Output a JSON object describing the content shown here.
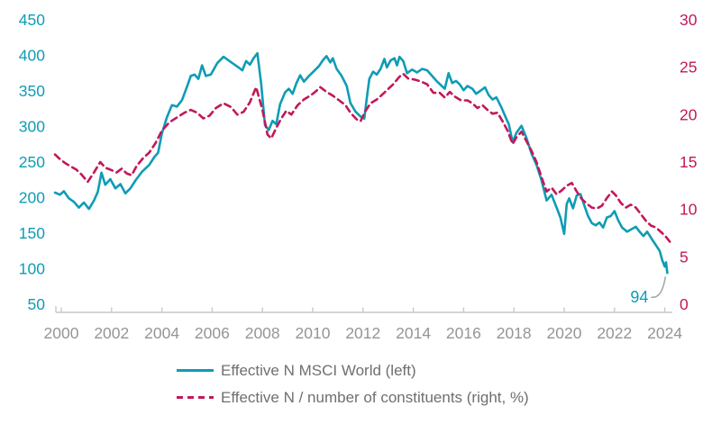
{
  "chart_data": {
    "type": "line",
    "title": "",
    "grid": false,
    "legend_position": "bottom-center",
    "background": "#ffffff",
    "axis_line_color": "#c9c9c9",
    "year_label_color": "#959595",
    "annotation": {
      "label": "94",
      "year": 2024.1,
      "value": 94,
      "color": "#0e9cb5",
      "callout_color": "#a9a9a9"
    },
    "x_axis": {
      "ticks": [
        2000,
        2002,
        2004,
        2006,
        2008,
        2010,
        2012,
        2014,
        2016,
        2018,
        2020,
        2022,
        2024
      ],
      "range": [
        1999.7,
        2024.4
      ]
    },
    "left_axis": {
      "ticks": [
        450,
        400,
        350,
        300,
        250,
        200,
        150,
        100,
        50
      ],
      "range": [
        50,
        450
      ],
      "color": "#0e9cb5"
    },
    "right_axis": {
      "ticks": [
        30,
        25,
        20,
        15,
        10,
        5,
        0
      ],
      "range": [
        0,
        30
      ],
      "color": "#c2185b"
    },
    "series": [
      {
        "name": "Effective N MSCI World (left)",
        "axis": "left",
        "style": "solid",
        "color": "#0e9cb5",
        "points": [
          [
            1999.75,
            207
          ],
          [
            1999.95,
            204
          ],
          [
            2000.1,
            209
          ],
          [
            2000.3,
            199
          ],
          [
            2000.5,
            194
          ],
          [
            2000.7,
            186
          ],
          [
            2000.9,
            193
          ],
          [
            2001.1,
            184
          ],
          [
            2001.3,
            196
          ],
          [
            2001.45,
            208
          ],
          [
            2001.6,
            235
          ],
          [
            2001.75,
            218
          ],
          [
            2001.95,
            226
          ],
          [
            2002.15,
            213
          ],
          [
            2002.35,
            219
          ],
          [
            2002.55,
            206
          ],
          [
            2002.75,
            213
          ],
          [
            2002.95,
            224
          ],
          [
            2003.2,
            236
          ],
          [
            2003.5,
            246
          ],
          [
            2003.7,
            257
          ],
          [
            2003.85,
            263
          ],
          [
            2004.0,
            290
          ],
          [
            2004.2,
            313
          ],
          [
            2004.4,
            330
          ],
          [
            2004.6,
            328
          ],
          [
            2004.8,
            337
          ],
          [
            2005.0,
            356
          ],
          [
            2005.15,
            371
          ],
          [
            2005.3,
            373
          ],
          [
            2005.45,
            367
          ],
          [
            2005.6,
            386
          ],
          [
            2005.75,
            371
          ],
          [
            2005.95,
            373
          ],
          [
            2006.2,
            389
          ],
          [
            2006.45,
            398
          ],
          [
            2006.65,
            393
          ],
          [
            2006.85,
            388
          ],
          [
            2007.05,
            383
          ],
          [
            2007.2,
            379
          ],
          [
            2007.35,
            392
          ],
          [
            2007.5,
            387
          ],
          [
            2007.65,
            396
          ],
          [
            2007.8,
            403
          ],
          [
            2007.95,
            360
          ],
          [
            2008.1,
            302
          ],
          [
            2008.25,
            295
          ],
          [
            2008.4,
            308
          ],
          [
            2008.55,
            303
          ],
          [
            2008.7,
            331
          ],
          [
            2008.9,
            348
          ],
          [
            2009.05,
            353
          ],
          [
            2009.2,
            346
          ],
          [
            2009.35,
            361
          ],
          [
            2009.5,
            372
          ],
          [
            2009.65,
            363
          ],
          [
            2009.85,
            371
          ],
          [
            2010.05,
            378
          ],
          [
            2010.25,
            385
          ],
          [
            2010.4,
            393
          ],
          [
            2010.55,
            399
          ],
          [
            2010.7,
            390
          ],
          [
            2010.8,
            396
          ],
          [
            2010.95,
            381
          ],
          [
            2011.15,
            371
          ],
          [
            2011.35,
            357
          ],
          [
            2011.5,
            333
          ],
          [
            2011.7,
            321
          ],
          [
            2011.9,
            314
          ],
          [
            2012.05,
            311
          ],
          [
            2012.15,
            340
          ],
          [
            2012.25,
            367
          ],
          [
            2012.4,
            377
          ],
          [
            2012.55,
            373
          ],
          [
            2012.7,
            381
          ],
          [
            2012.85,
            395
          ],
          [
            2012.95,
            383
          ],
          [
            2013.1,
            393
          ],
          [
            2013.25,
            396
          ],
          [
            2013.35,
            386
          ],
          [
            2013.45,
            398
          ],
          [
            2013.6,
            392
          ],
          [
            2013.75,
            375
          ],
          [
            2013.95,
            380
          ],
          [
            2014.15,
            376
          ],
          [
            2014.35,
            381
          ],
          [
            2014.55,
            379
          ],
          [
            2014.75,
            371
          ],
          [
            2014.95,
            363
          ],
          [
            2015.1,
            358
          ],
          [
            2015.25,
            353
          ],
          [
            2015.4,
            375
          ],
          [
            2015.55,
            361
          ],
          [
            2015.7,
            364
          ],
          [
            2015.85,
            359
          ],
          [
            2016.0,
            351
          ],
          [
            2016.15,
            357
          ],
          [
            2016.35,
            353
          ],
          [
            2016.5,
            346
          ],
          [
            2016.7,
            351
          ],
          [
            2016.85,
            355
          ],
          [
            2017.0,
            344
          ],
          [
            2017.15,
            338
          ],
          [
            2017.3,
            341
          ],
          [
            2017.5,
            327
          ],
          [
            2017.65,
            315
          ],
          [
            2017.8,
            303
          ],
          [
            2017.95,
            278
          ],
          [
            2018.1,
            291
          ],
          [
            2018.3,
            301
          ],
          [
            2018.5,
            284
          ],
          [
            2018.7,
            262
          ],
          [
            2018.9,
            246
          ],
          [
            2019.1,
            224
          ],
          [
            2019.3,
            196
          ],
          [
            2019.5,
            204
          ],
          [
            2019.7,
            186
          ],
          [
            2019.85,
            172
          ],
          [
            2020.0,
            149
          ],
          [
            2020.1,
            191
          ],
          [
            2020.2,
            199
          ],
          [
            2020.35,
            185
          ],
          [
            2020.5,
            203
          ],
          [
            2020.65,
            205
          ],
          [
            2020.8,
            189
          ],
          [
            2020.95,
            174
          ],
          [
            2021.1,
            164
          ],
          [
            2021.25,
            161
          ],
          [
            2021.4,
            165
          ],
          [
            2021.55,
            158
          ],
          [
            2021.7,
            172
          ],
          [
            2021.85,
            174
          ],
          [
            2022.0,
            181
          ],
          [
            2022.15,
            168
          ],
          [
            2022.3,
            158
          ],
          [
            2022.5,
            152
          ],
          [
            2022.7,
            156
          ],
          [
            2022.85,
            159
          ],
          [
            2023.0,
            152
          ],
          [
            2023.15,
            146
          ],
          [
            2023.3,
            152
          ],
          [
            2023.5,
            141
          ],
          [
            2023.65,
            133
          ],
          [
            2023.8,
            125
          ],
          [
            2023.9,
            112
          ],
          [
            2024.0,
            103
          ],
          [
            2024.05,
            109
          ],
          [
            2024.1,
            94
          ]
        ]
      },
      {
        "name": "Effective N / number of constituents (right, %)",
        "axis": "right",
        "style": "dashed",
        "color": "#c2185b",
        "points": [
          [
            1999.75,
            15.8
          ],
          [
            1999.95,
            15.3
          ],
          [
            2000.15,
            14.9
          ],
          [
            2000.4,
            14.5
          ],
          [
            2000.6,
            14.2
          ],
          [
            2000.8,
            13.7
          ],
          [
            2001.05,
            12.9
          ],
          [
            2001.3,
            13.9
          ],
          [
            2001.55,
            15.0
          ],
          [
            2001.75,
            14.4
          ],
          [
            2001.95,
            14.2
          ],
          [
            2002.2,
            13.9
          ],
          [
            2002.4,
            14.3
          ],
          [
            2002.6,
            13.8
          ],
          [
            2002.8,
            13.6
          ],
          [
            2003.0,
            14.6
          ],
          [
            2003.25,
            15.4
          ],
          [
            2003.5,
            16.0
          ],
          [
            2003.75,
            17.0
          ],
          [
            2004.0,
            18.3
          ],
          [
            2004.3,
            19.2
          ],
          [
            2004.6,
            19.7
          ],
          [
            2004.9,
            20.2
          ],
          [
            2005.15,
            20.5
          ],
          [
            2005.4,
            20.2
          ],
          [
            2005.65,
            19.6
          ],
          [
            2005.9,
            19.9
          ],
          [
            2006.15,
            20.7
          ],
          [
            2006.45,
            21.2
          ],
          [
            2006.75,
            20.8
          ],
          [
            2007.0,
            20.0
          ],
          [
            2007.25,
            20.3
          ],
          [
            2007.5,
            21.3
          ],
          [
            2007.75,
            22.9
          ],
          [
            2008.0,
            20.5
          ],
          [
            2008.2,
            17.9
          ],
          [
            2008.35,
            17.5
          ],
          [
            2008.55,
            18.6
          ],
          [
            2008.75,
            19.6
          ],
          [
            2008.95,
            20.4
          ],
          [
            2009.15,
            20.0
          ],
          [
            2009.4,
            21.0
          ],
          [
            2009.65,
            21.6
          ],
          [
            2009.9,
            22.0
          ],
          [
            2010.1,
            22.4
          ],
          [
            2010.3,
            22.9
          ],
          [
            2010.55,
            22.4
          ],
          [
            2010.8,
            22.0
          ],
          [
            2011.05,
            21.5
          ],
          [
            2011.3,
            21.0
          ],
          [
            2011.5,
            20.2
          ],
          [
            2011.75,
            19.5
          ],
          [
            2011.9,
            19.3
          ],
          [
            2012.1,
            20.4
          ],
          [
            2012.3,
            21.2
          ],
          [
            2012.55,
            21.6
          ],
          [
            2012.8,
            22.2
          ],
          [
            2013.0,
            22.7
          ],
          [
            2013.2,
            23.2
          ],
          [
            2013.45,
            24.0
          ],
          [
            2013.6,
            24.3
          ],
          [
            2013.8,
            23.8
          ],
          [
            2014.05,
            23.7
          ],
          [
            2014.3,
            23.5
          ],
          [
            2014.55,
            23.2
          ],
          [
            2014.8,
            22.3
          ],
          [
            2015.05,
            22.3
          ],
          [
            2015.25,
            21.8
          ],
          [
            2015.45,
            22.4
          ],
          [
            2015.65,
            21.9
          ],
          [
            2015.9,
            21.5
          ],
          [
            2016.15,
            21.5
          ],
          [
            2016.35,
            21.2
          ],
          [
            2016.55,
            20.7
          ],
          [
            2016.75,
            21.0
          ],
          [
            2016.95,
            20.5
          ],
          [
            2017.15,
            20.1
          ],
          [
            2017.35,
            20.2
          ],
          [
            2017.55,
            19.3
          ],
          [
            2017.75,
            18.3
          ],
          [
            2017.95,
            16.9
          ],
          [
            2018.1,
            17.6
          ],
          [
            2018.3,
            18.2
          ],
          [
            2018.5,
            17.2
          ],
          [
            2018.7,
            16.2
          ],
          [
            2018.9,
            15.0
          ],
          [
            2019.1,
            13.4
          ],
          [
            2019.3,
            11.9
          ],
          [
            2019.5,
            12.3
          ],
          [
            2019.7,
            11.6
          ],
          [
            2019.9,
            12.0
          ],
          [
            2020.1,
            12.5
          ],
          [
            2020.3,
            12.8
          ],
          [
            2020.5,
            11.9
          ],
          [
            2020.7,
            11.1
          ],
          [
            2020.9,
            10.6
          ],
          [
            2021.1,
            10.2
          ],
          [
            2021.3,
            10.1
          ],
          [
            2021.5,
            10.4
          ],
          [
            2021.7,
            11.2
          ],
          [
            2021.9,
            11.9
          ],
          [
            2022.05,
            11.5
          ],
          [
            2022.25,
            10.7
          ],
          [
            2022.45,
            10.2
          ],
          [
            2022.65,
            10.5
          ],
          [
            2022.85,
            10.2
          ],
          [
            2023.05,
            9.5
          ],
          [
            2023.25,
            8.8
          ],
          [
            2023.45,
            8.3
          ],
          [
            2023.65,
            8.1
          ],
          [
            2023.9,
            7.5
          ],
          [
            2024.05,
            7.1
          ],
          [
            2024.2,
            6.6
          ]
        ]
      }
    ]
  }
}
